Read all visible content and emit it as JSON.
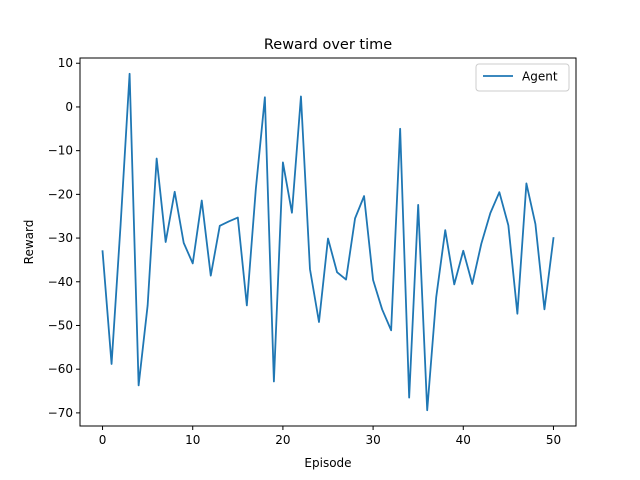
{
  "chart_data": {
    "type": "line",
    "title": "Reward over time",
    "xlabel": "Episode",
    "ylabel": "Reward",
    "xlim": [
      -2.5,
      52.5
    ],
    "ylim": [
      -73,
      11.2
    ],
    "x_ticks": [
      0,
      10,
      20,
      30,
      40,
      50
    ],
    "y_ticks": [
      10,
      0,
      -10,
      -20,
      -30,
      -40,
      -50,
      -60,
      -70
    ],
    "grid": false,
    "legend_position": "top-right",
    "colors": {
      "series": "#1f77b4"
    },
    "series": [
      {
        "name": "Agent",
        "x": [
          0,
          1,
          2,
          3,
          4,
          5,
          6,
          7,
          8,
          9,
          10,
          11,
          12,
          13,
          14,
          15,
          16,
          17,
          18,
          19,
          20,
          21,
          22,
          23,
          24,
          25,
          26,
          27,
          28,
          29,
          30,
          31,
          32,
          33,
          34,
          35,
          36,
          37,
          38,
          39,
          40,
          41,
          42,
          43,
          44,
          45,
          46,
          47,
          48,
          49,
          50
        ],
        "values": [
          -33,
          -58.8,
          -27,
          7.6,
          -63.7,
          -45.4,
          -11.8,
          -30.9,
          -19.4,
          -31.1,
          -35.8,
          -21.4,
          -38.6,
          -27.2,
          -26.2,
          -25.3,
          -45.4,
          -18.7,
          2.2,
          -62.8,
          -12.7,
          -24.2,
          2.4,
          -37.1,
          -49.2,
          -30.1,
          -37.8,
          -39.5,
          -25.5,
          -20.4,
          -39.6,
          -46.3,
          -51.1,
          -5,
          -66.5,
          -22.4,
          -69.4,
          -43.5,
          -28.2,
          -40.6,
          -32.9,
          -40.5,
          -31.3,
          -24.3,
          -19.5,
          -27.1,
          -47.3,
          -17.5,
          -26.8,
          -46.3,
          -30
        ]
      }
    ]
  }
}
